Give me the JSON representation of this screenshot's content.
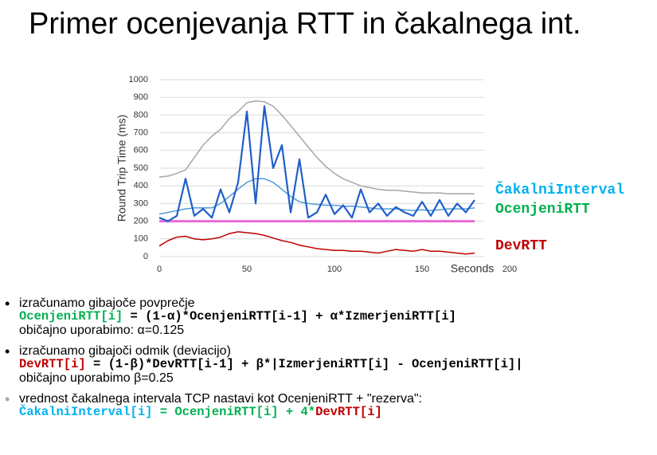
{
  "title": "Primer ocenjevanja RTT in čakalnega int.",
  "chart_data": {
    "type": "line",
    "ylabel": "Round Trip Time (ms)",
    "xlabel": "Seconds",
    "xlim": [
      0,
      200
    ],
    "xticks": [
      0,
      50,
      100,
      150,
      200
    ],
    "ylim": [
      0,
      1000
    ],
    "yticks": [
      0,
      100,
      200,
      300,
      400,
      500,
      600,
      700,
      800,
      900,
      1000
    ],
    "grid": true,
    "x": [
      0,
      5,
      10,
      15,
      20,
      25,
      30,
      35,
      40,
      45,
      50,
      55,
      60,
      65,
      70,
      75,
      80,
      85,
      90,
      95,
      100,
      105,
      110,
      115,
      120,
      125,
      130,
      135,
      140,
      145,
      150,
      155,
      160,
      165,
      170,
      175,
      180
    ],
    "series": [
      {
        "name": "ČakalniInterval",
        "color": "#a6a6a6",
        "legend_color": "#00b0f0",
        "values": [
          450,
          455,
          470,
          490,
          560,
          630,
          680,
          720,
          780,
          820,
          870,
          880,
          875,
          850,
          800,
          740,
          680,
          620,
          560,
          510,
          470,
          440,
          420,
          400,
          390,
          380,
          375,
          375,
          370,
          365,
          360,
          360,
          360,
          355,
          355,
          355,
          355
        ]
      },
      {
        "name": "OcenjeniRTT",
        "color": "#4f9bd9",
        "legend_color": "#00b050",
        "values": [
          240,
          250,
          260,
          270,
          275,
          275,
          275,
          300,
          340,
          380,
          420,
          440,
          440,
          420,
          380,
          340,
          310,
          300,
          295,
          290,
          290,
          285,
          285,
          280,
          275,
          270,
          270,
          270,
          265,
          260,
          265,
          260,
          265,
          270,
          270,
          270,
          275
        ]
      },
      {
        "name": "DevRTT",
        "color": "#c00000",
        "legend_color": "#c00000",
        "values": [
          60,
          90,
          110,
          115,
          100,
          95,
          100,
          110,
          130,
          140,
          135,
          130,
          120,
          105,
          90,
          80,
          65,
          55,
          45,
          40,
          35,
          35,
          30,
          30,
          25,
          20,
          30,
          40,
          35,
          30,
          40,
          30,
          30,
          25,
          20,
          15,
          20
        ]
      },
      {
        "color": "#1f5fc8",
        "values": [
          220,
          200,
          230,
          440,
          230,
          270,
          220,
          380,
          250,
          420,
          820,
          300,
          850,
          500,
          630,
          250,
          550,
          220,
          250,
          350,
          240,
          290,
          220,
          380,
          250,
          300,
          230,
          280,
          250,
          230,
          310,
          230,
          320,
          230,
          300,
          250,
          320
        ]
      },
      {
        "color": "#e86ad4",
        "values": [
          200,
          200,
          200,
          200,
          200,
          200,
          200,
          200,
          200,
          200,
          200,
          200,
          200,
          200,
          200,
          200,
          200,
          200,
          200,
          200,
          200,
          200,
          200,
          200,
          200,
          200,
          200,
          200,
          200,
          200,
          200,
          200,
          200,
          200,
          200,
          200,
          200
        ]
      }
    ]
  },
  "bullets": [
    {
      "marker": "•",
      "marker_color": "#000000",
      "lines": [
        {
          "mono": false,
          "parts": [
            {
              "text": "izračunamo gibajoče povprečje",
              "color": "#000000"
            }
          ]
        },
        {
          "mono": true,
          "parts": [
            {
              "text": "OcenjeniRTT[i]",
              "color": "#00b050"
            },
            {
              "text": " = (1-α)*OcenjeniRTT[i-1] + α*IzmerjeniRTT[i]",
              "color": "#000000"
            }
          ]
        },
        {
          "mono": false,
          "parts": [
            {
              "text": "običajno uporabimo: α=0.125",
              "color": "#000000"
            }
          ]
        }
      ]
    },
    {
      "marker": "•",
      "marker_color": "#000000",
      "lines": [
        {
          "mono": false,
          "parts": [
            {
              "text": "izračunamo gibajoči odmik (deviacijo)",
              "color": "#000000"
            }
          ]
        },
        {
          "mono": true,
          "parts": [
            {
              "text": "DevRTT[i]",
              "color": "#c00000"
            },
            {
              "text": " = (1-β)*DevRTT[i-1] + β*|IzmerjeniRTT[i] - OcenjeniRTT[i]|",
              "color": "#000000"
            }
          ]
        },
        {
          "mono": false,
          "parts": [
            {
              "text": "običajno uporabimo β=0.25",
              "color": "#000000"
            }
          ]
        }
      ]
    },
    {
      "marker": "•",
      "marker_color": "#a6a6a6",
      "lines": [
        {
          "mono": false,
          "parts": [
            {
              "text": "vrednost čakalnega intervala TCP nastavi kot OcenjeniRTT + \"rezerva\":",
              "color": "#000000"
            }
          ]
        },
        {
          "mono": true,
          "parts": [
            {
              "text": "ČakalniInterval[i]",
              "color": "#00b0f0"
            },
            {
              "text": " = OcenjeniRTT[i] + 4*",
              "color": "#00b050"
            },
            {
              "text": "DevRTT[i]",
              "color": "#c00000"
            }
          ]
        }
      ]
    }
  ]
}
